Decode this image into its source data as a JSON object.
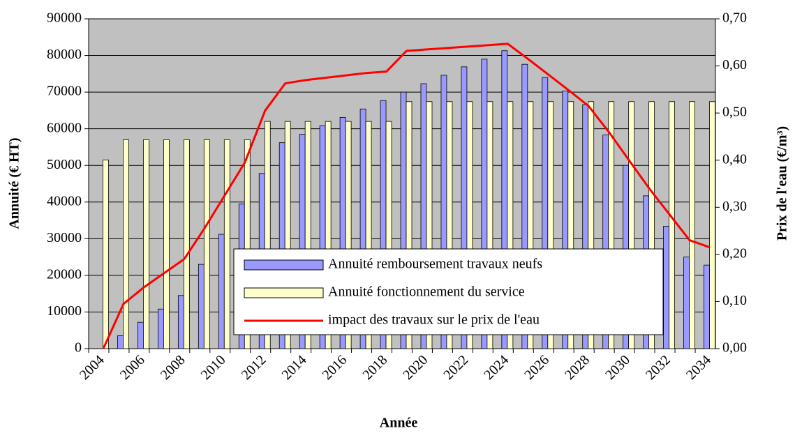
{
  "chart_data": {
    "type": "bar-line",
    "x_label": "Année",
    "y_label": "Annuité (€ HT)",
    "y2_label": "Prix de l'eau (€/m³)",
    "categories": [
      "2004",
      null,
      "2006",
      null,
      "2008",
      null,
      "2010",
      null,
      "2012",
      null,
      "2014",
      null,
      "2016",
      null,
      "2018",
      null,
      "2020",
      null,
      "2022",
      null,
      "2024",
      null,
      "2026",
      null,
      "2028",
      null,
      "2030",
      null,
      "2032",
      null,
      "2034"
    ],
    "series": [
      {
        "name": "Annuité remboursement travaux neufs",
        "type": "bar",
        "color": "#9999ff",
        "values": [
          0,
          3500,
          7200,
          10800,
          14500,
          23000,
          31200,
          39500,
          47800,
          56200,
          58500,
          60800,
          63100,
          65400,
          67700,
          70000,
          72300,
          74600,
          76900,
          79000,
          81300,
          77600,
          74000,
          70300,
          66600,
          58300,
          50000,
          41700,
          33400,
          25000,
          22800
        ]
      },
      {
        "name": "Annuité fonctionnement du service",
        "type": "bar",
        "color": "#ffffcc",
        "values": [
          51500,
          57000,
          57000,
          57000,
          57000,
          57000,
          57000,
          57000,
          62000,
          62000,
          62000,
          62000,
          62000,
          62000,
          62000,
          67400,
          67400,
          67400,
          67400,
          67400,
          67400,
          67400,
          67400,
          67400,
          67400,
          67400,
          67400,
          67400,
          67400,
          67400,
          67400
        ]
      },
      {
        "name": "impact des travaux sur le prix de l'eau",
        "type": "line",
        "axis": "y2",
        "color": "#ff0000",
        "values": [
          0,
          0.095,
          0.13,
          0.16,
          0.19,
          0.255,
          0.325,
          0.395,
          0.505,
          0.563,
          0.57,
          0.575,
          0.58,
          0.585,
          0.588,
          0.632,
          0.635,
          0.638,
          0.641,
          0.644,
          0.647,
          0.615,
          0.582,
          0.549,
          0.515,
          0.46,
          0.4,
          0.34,
          0.285,
          0.23,
          0.215
        ]
      }
    ],
    "ylim": [
      0,
      90000
    ],
    "yticks": [
      0,
      10000,
      20000,
      30000,
      40000,
      50000,
      60000,
      70000,
      80000,
      90000
    ],
    "y2lim": [
      0,
      0.7
    ],
    "y2ticks": [
      {
        "value": 0,
        "label": "0,00"
      },
      {
        "value": 0.1,
        "label": "0,10"
      },
      {
        "value": 0.2,
        "label": "0,20"
      },
      {
        "value": 0.3,
        "label": "0,30"
      },
      {
        "value": 0.4,
        "label": "0,40"
      },
      {
        "value": 0.5,
        "label": "0,50"
      },
      {
        "value": 0.6,
        "label": "0,60"
      },
      {
        "value": 0.7,
        "label": "0,70"
      }
    ],
    "grid": true
  }
}
